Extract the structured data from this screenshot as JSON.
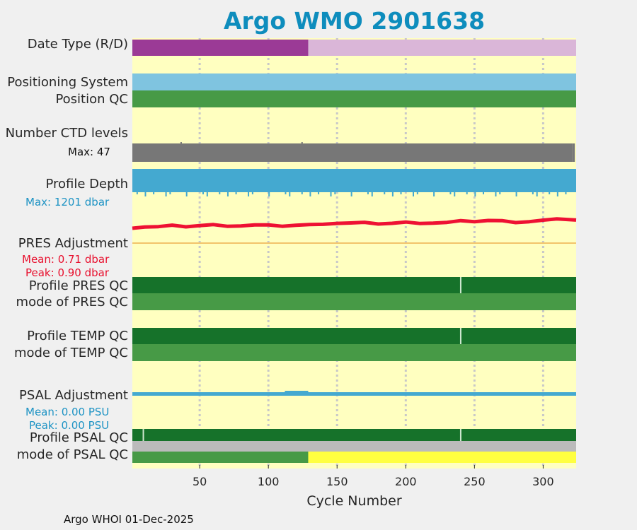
{
  "title": "Argo WMO 2901638",
  "footer": "Argo WHOI 01-Dec-2025",
  "labels": {
    "date_type": "Date Type (R/D)",
    "positioning_system": "Positioning System",
    "position_qc": "Position QC",
    "number_ctd_levels": "Number CTD levels",
    "ctd_max": "Max: 47",
    "profile_depth": "Profile Depth",
    "depth_max": "Max: 1201 dbar",
    "pres_adjustment": "PRES Adjustment",
    "pres_mean": "Mean: 0.71 dbar",
    "pres_peak": "Peak: 0.90 dbar",
    "profile_pres_qc": "Profile PRES QC",
    "mode_pres_qc": "mode of PRES QC",
    "profile_temp_qc": "Profile TEMP QC",
    "mode_temp_qc": "mode of TEMP QC",
    "psal_adjustment": "PSAL Adjustment",
    "psal_mean": "Mean: 0.00 PSU",
    "psal_peak": "Peak: 0.00 PSU",
    "profile_psal_qc": "Profile PSAL QC",
    "mode_psal_qc": "mode of PSAL QC"
  },
  "colors": {
    "background": "#ffffc0",
    "real_time": "#9b3a96",
    "delayed": "#dab6d8",
    "positioning": "#7fc4e0",
    "qc_good": "#479a46",
    "profile_qc_a": "#16722a",
    "ctd": "#777777",
    "depth": "#44a9d0",
    "pres_line": "#ee1133",
    "pres_ref": "#f2c46b",
    "psal": "#44a9d0",
    "gray": "#bbbbbb",
    "yellow_qc": "#ffff40",
    "title": "#0e8dbd"
  },
  "chart_data": {
    "type": "timeline",
    "title": "Argo WMO 2901638",
    "xlabel": "Cycle Number",
    "xlim": [
      1,
      324
    ],
    "xticks": [
      50,
      100,
      150,
      200,
      250,
      300
    ],
    "grid": "x dotted",
    "date_type": [
      {
        "from": 1,
        "to": 129,
        "mode": "R"
      },
      {
        "from": 129,
        "to": 324,
        "mode": "D"
      }
    ],
    "positioning_system": [
      {
        "from": 1,
        "to": 324,
        "value": "GPS"
      }
    ],
    "position_qc": [
      {
        "from": 1,
        "to": 324,
        "value": "1"
      }
    ],
    "number_ctd_levels": {
      "max": 47
    },
    "profile_depth": {
      "max_dbar": 1201
    },
    "pres_adjustment": {
      "mean_dbar": 0.71,
      "peak_dbar": 0.9,
      "cycles": [
        1,
        10,
        20,
        30,
        40,
        50,
        60,
        70,
        80,
        90,
        100,
        110,
        120,
        130,
        140,
        150,
        160,
        170,
        180,
        190,
        200,
        210,
        220,
        230,
        240,
        250,
        260,
        270,
        280,
        290,
        300,
        310,
        324
      ],
      "values": [
        0.56,
        0.58,
        0.57,
        0.6,
        0.6,
        0.62,
        0.63,
        0.63,
        0.62,
        0.63,
        0.61,
        0.62,
        0.63,
        0.63,
        0.7,
        0.71,
        0.7,
        0.7,
        0.7,
        0.7,
        0.72,
        0.73,
        0.72,
        0.72,
        0.76,
        0.78,
        0.8,
        0.77,
        0.76,
        0.77,
        0.8,
        0.82,
        0.84
      ]
    },
    "profile_pres_qc": [
      {
        "from": 1,
        "to": 324,
        "value": "A"
      }
    ],
    "mode_pres_qc": [
      {
        "from": 1,
        "to": 324,
        "value": "1"
      }
    ],
    "profile_temp_qc": [
      {
        "from": 1,
        "to": 324,
        "value": "A"
      }
    ],
    "mode_temp_qc": [
      {
        "from": 1,
        "to": 324,
        "value": "1"
      }
    ],
    "psal_adjustment": {
      "mean_psu": 0.0,
      "peak_psu": 0.0
    },
    "profile_psal_qc": [
      {
        "from": 1,
        "to": 324,
        "value": "A"
      }
    ],
    "mode_psal_qc": [
      {
        "from": 1,
        "to": 129,
        "value": "1"
      },
      {
        "from": 129,
        "to": 324,
        "value": "3"
      }
    ]
  }
}
